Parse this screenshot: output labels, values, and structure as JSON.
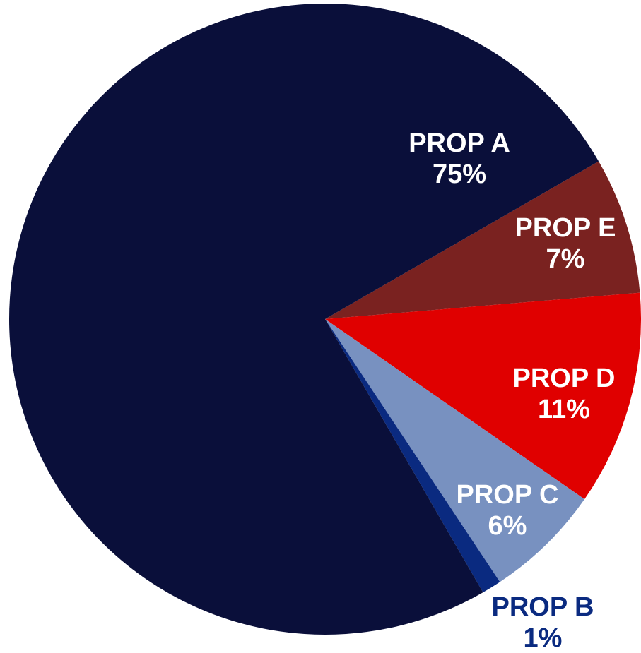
{
  "chart_data": {
    "type": "pie",
    "categories": [
      "PROP E",
      "PROP D",
      "PROP C",
      "PROP B",
      "PROP A"
    ],
    "values": [
      7,
      11,
      6,
      1,
      75
    ],
    "value_labels": [
      "7%",
      "11%",
      "6%",
      "1%",
      "75%"
    ],
    "colors": [
      "#7a2220",
      "#e00000",
      "#7891c0",
      "#0a2a80",
      "#0a0f3a"
    ]
  }
}
